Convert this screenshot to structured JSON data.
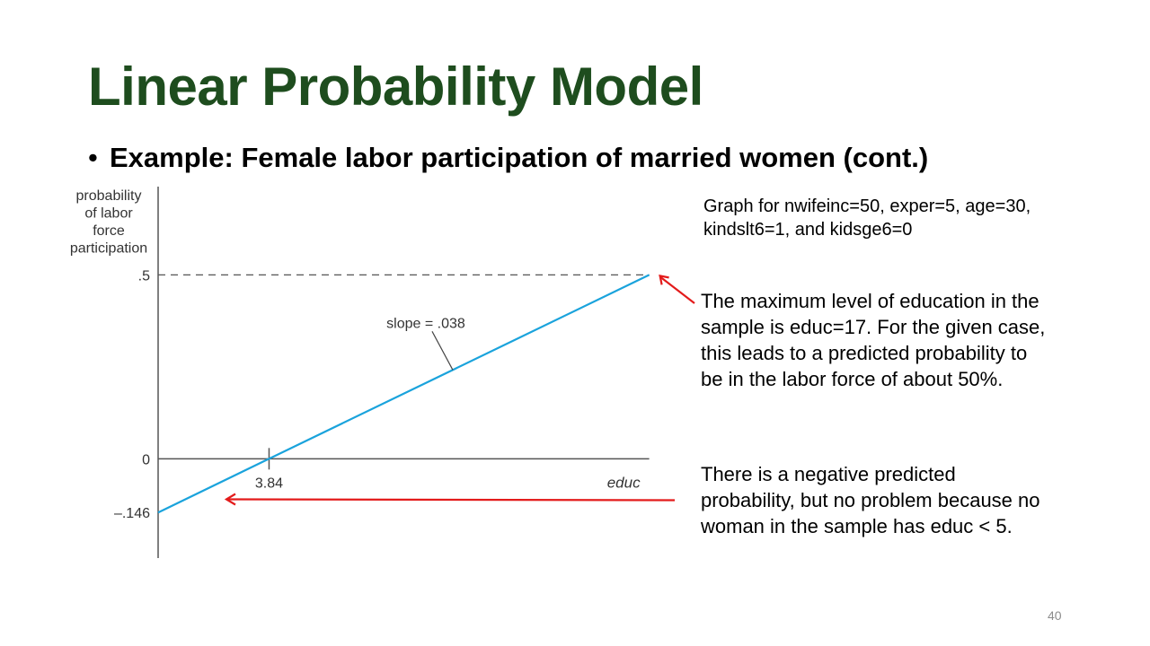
{
  "slide": {
    "title": "Linear Probability Model",
    "bullet": "Example: Female labor participation of married women (cont.)",
    "page_number": "40"
  },
  "annotations": {
    "condition": [
      "Graph for nwifeinc=50, exper=5, age=30,",
      "kindslt6=1, and kidsge6=0"
    ],
    "max_education": [
      "The maximum level of education in the",
      "sample is educ=17. For the given case,",
      "this leads to a predicted probability to",
      "be in the labor force of about 50%."
    ],
    "negative_probability": [
      "There is a negative predicted",
      "probability, but no problem because no",
      "woman in the sample has educ < 5."
    ]
  },
  "colors": {
    "title": "#1e4d1e",
    "line": "#1aa3dc",
    "arrow": "#e31b1b",
    "axis": "#555555"
  },
  "chart_data": {
    "type": "line",
    "ylabel": [
      "probability",
      "of labor",
      "force",
      "participation"
    ],
    "xlabel": "educ",
    "ytick_labels": [
      ".5",
      "0",
      "–.146"
    ],
    "yticks": [
      0.5,
      0,
      -0.146
    ],
    "xticks": [
      3.84
    ],
    "xtick_labels": [
      "3.84"
    ],
    "x": [
      0,
      3.84,
      17
    ],
    "y": [
      -0.146,
      0,
      0.5
    ],
    "xlim": [
      0,
      17
    ],
    "ylim": [
      -0.27,
      0.74
    ],
    "slope_label": "slope = .038",
    "reference_line": {
      "y": 0.5,
      "style": "dashed"
    }
  }
}
